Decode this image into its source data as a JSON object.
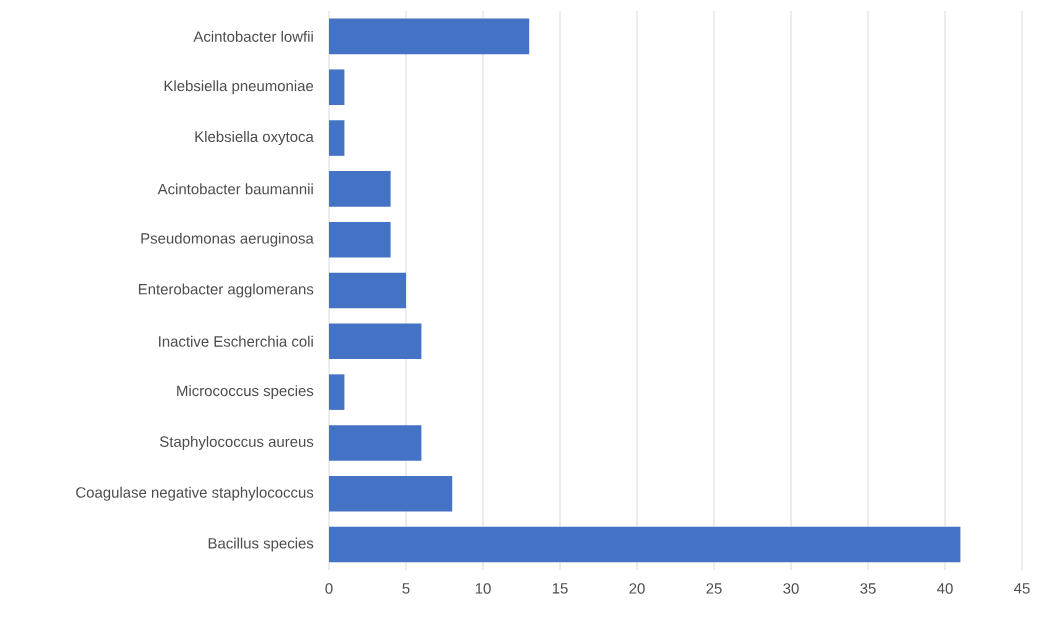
{
  "chart_data": {
    "type": "bar",
    "orientation": "horizontal",
    "categories": [
      "Acintobacter lowfii",
      "Klebsiella pneumoniae",
      "Klebsiella oxytoca",
      "Acintobacter baumannii",
      "Pseudomonas aeruginosa",
      "Enterobacter agglomerans",
      "Inactive Escherchia coli",
      "Micrococcus species",
      "Staphylococcus aureus",
      "Coagulase negative staphylococcus",
      "Bacillus species"
    ],
    "values": [
      13,
      1,
      1,
      4,
      4,
      5,
      6,
      1,
      6,
      8,
      41
    ],
    "color": "#4472c4",
    "xlim": [
      0,
      45
    ],
    "xticks": [
      0,
      5,
      10,
      15,
      20,
      25,
      30,
      35,
      40,
      45
    ],
    "grid": "x"
  }
}
